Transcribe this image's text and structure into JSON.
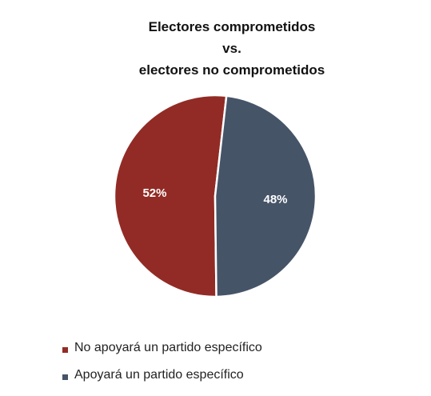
{
  "chart_data": {
    "type": "pie",
    "title_lines": [
      "Electores comprometidos",
      "vs.",
      "electores no comprometidos"
    ],
    "slices": [
      {
        "label": "No apoyará un partido específico",
        "value": 52,
        "display": "52%",
        "color": "#922b25"
      },
      {
        "label": "Apoyará un partido específico",
        "value": 48,
        "display": "48%",
        "color": "#465468"
      }
    ],
    "legend_position": "bottom-left"
  }
}
